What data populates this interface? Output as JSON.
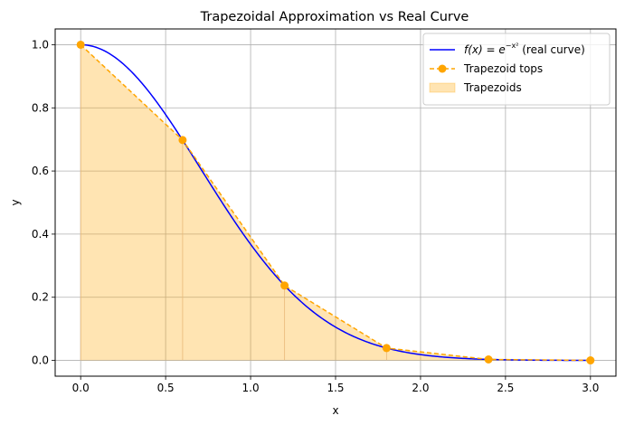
{
  "chart_data": {
    "type": "line",
    "title": "Trapezoidal Approximation vs Real Curve",
    "xlabel": "x",
    "ylabel": "y",
    "xlim": [
      -0.15,
      3.15
    ],
    "ylim": [
      -0.05,
      1.05
    ],
    "x_ticks": [
      0.0,
      0.5,
      1.0,
      1.5,
      2.0,
      2.5,
      3.0
    ],
    "x_tick_labels": [
      "0.0",
      "0.5",
      "1.0",
      "1.5",
      "2.0",
      "2.5",
      "3.0"
    ],
    "y_ticks": [
      0.0,
      0.2,
      0.4,
      0.6,
      0.8,
      1.0
    ],
    "y_tick_labels": [
      "0.0",
      "0.2",
      "0.4",
      "0.6",
      "0.8",
      "1.0"
    ],
    "grid": true,
    "legend_position": "top-right",
    "legend": {
      "real_curve": {
        "prefix": "f(x) = e",
        "exponent": "−x²",
        "suffix": " (real curve)"
      },
      "trapezoid_tops": "Trapezoid tops",
      "trapezoids": "Trapezoids"
    },
    "real_curve": {
      "function": "exp(-x^2)",
      "x_range": [
        0,
        3
      ],
      "color": "#0000ff"
    },
    "trapezoid_tops": {
      "x": [
        0.0,
        0.6,
        1.2,
        1.8,
        2.4,
        3.0
      ],
      "y": [
        1.0,
        0.698,
        0.237,
        0.039,
        0.003,
        0.0001
      ],
      "color": "#ffa500"
    },
    "trapezoids": {
      "fill_color": "#ffa500",
      "fill_opacity": 0.3
    }
  }
}
